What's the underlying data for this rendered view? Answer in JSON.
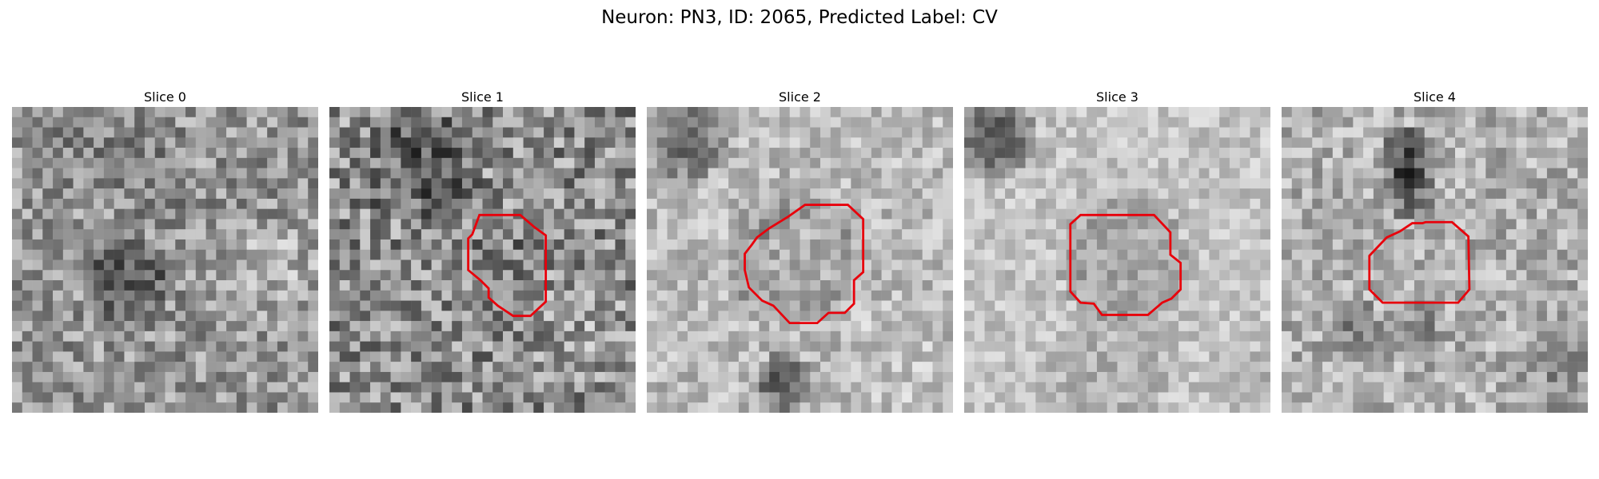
{
  "figure": {
    "title": "Neuron: PN3, ID: 2065, Predicted Label: CV",
    "outline_color": "#e8000b"
  },
  "panels": [
    {
      "title": "Slice 0",
      "image": "grayscale-noise-texture",
      "has_outline": false
    },
    {
      "title": "Slice 1",
      "image": "grayscale-noise-texture",
      "has_outline": true
    },
    {
      "title": "Slice 2",
      "image": "grayscale-noise-texture",
      "has_outline": true
    },
    {
      "title": "Slice 3",
      "image": "grayscale-noise-texture",
      "has_outline": true
    },
    {
      "title": "Slice 4",
      "image": "grayscale-noise-texture",
      "has_outline": true
    }
  ]
}
